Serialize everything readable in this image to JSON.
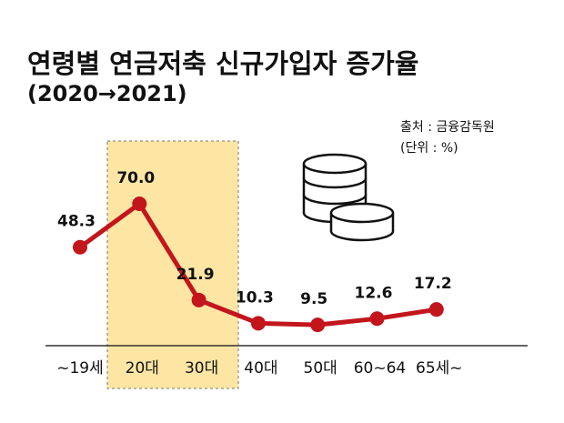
{
  "chart_data": {
    "type": "line",
    "title": "연령별 연금저축 신규가입자 증가율",
    "subtitle": "(2020→2021)",
    "source": "출처 : 금융감독원",
    "unit": "(단위 : %)",
    "categories": [
      "~19세",
      "20대",
      "30대",
      "40대",
      "50대",
      "60~64",
      "65세~"
    ],
    "values": [
      48.3,
      70.0,
      21.9,
      10.3,
      9.5,
      12.6,
      17.2
    ],
    "value_labels": [
      "48.3",
      "70.0",
      "21.9",
      "10.3",
      "9.5",
      "12.6",
      "17.2"
    ],
    "color": "#c3151c"
  }
}
